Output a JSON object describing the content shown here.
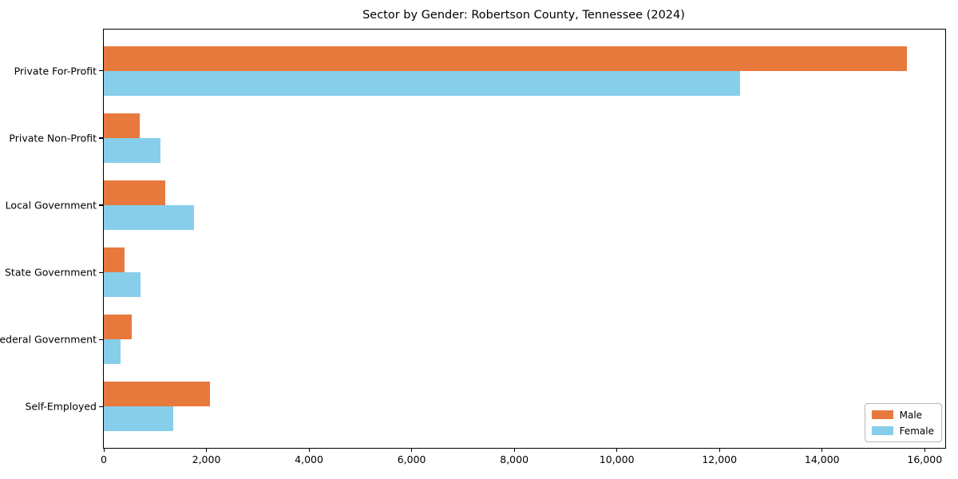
{
  "chart_data": {
    "type": "bar",
    "orientation": "horizontal",
    "title": "Sector by Gender: Robertson County, Tennessee (2024)",
    "categories": [
      "Private For-Profit",
      "Private Non-Profit",
      "Local Government",
      "State Government",
      "Federal Government",
      "Self-Employed"
    ],
    "series": [
      {
        "name": "Male",
        "color": "#E8793D",
        "values": [
          15650,
          700,
          1200,
          400,
          540,
          2070
        ]
      },
      {
        "name": "Female",
        "color": "#87CEEB",
        "values": [
          12400,
          1100,
          1760,
          715,
          330,
          1350
        ]
      }
    ],
    "xlabel": "",
    "ylabel": "",
    "xlim": [
      0,
      16400
    ],
    "xticks": [
      {
        "value": 0,
        "label": "0"
      },
      {
        "value": 2000,
        "label": "2,000"
      },
      {
        "value": 4000,
        "label": "4,000"
      },
      {
        "value": 6000,
        "label": "6,000"
      },
      {
        "value": 8000,
        "label": "8,000"
      },
      {
        "value": 10000,
        "label": "10,000"
      },
      {
        "value": 12000,
        "label": "12,000"
      },
      {
        "value": 14000,
        "label": "14,000"
      },
      {
        "value": 16000,
        "label": "16,000"
      }
    ],
    "grid": false,
    "legend_position": "lower right"
  }
}
